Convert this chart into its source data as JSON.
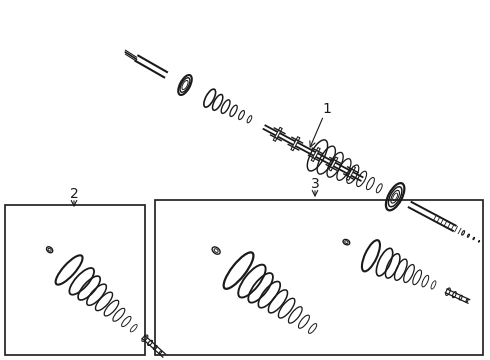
{
  "background_color": "#ffffff",
  "line_color": "#1a1a1a",
  "label_1": "1",
  "label_2": "2",
  "label_3": "3"
}
